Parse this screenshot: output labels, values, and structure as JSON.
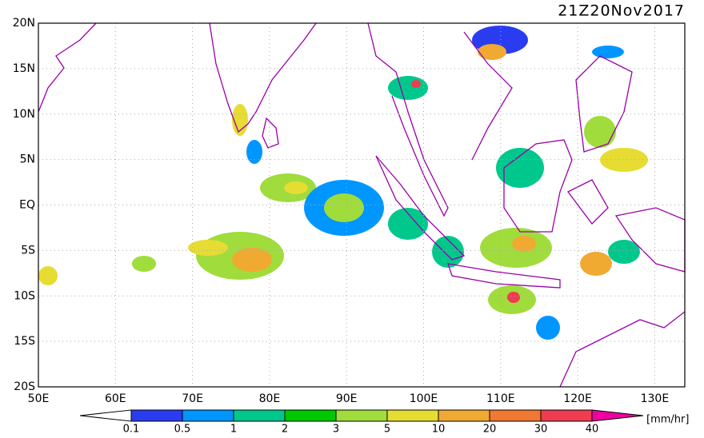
{
  "title": "21Z20Nov2017",
  "lat_labels": [
    "20N",
    "15N",
    "10N",
    "5N",
    "EQ",
    "5S",
    "10S",
    "15S",
    "20S"
  ],
  "lon_labels": [
    "50E",
    "60E",
    "70E",
    "80E",
    "90E",
    "100E",
    "110E",
    "120E",
    "130E"
  ],
  "colorbar": {
    "labels": [
      "0.1",
      "0.5",
      "1",
      "2",
      "3",
      "5",
      "10",
      "20",
      "30",
      "40"
    ],
    "colors": [
      "#ffffff",
      "#2a3cf0",
      "#0096ff",
      "#00c88c",
      "#00c800",
      "#a0dc3c",
      "#e6dc32",
      "#f0aa32",
      "#f07832",
      "#f03c50",
      "#f000a0"
    ],
    "unit": "[mm/hr]"
  }
}
